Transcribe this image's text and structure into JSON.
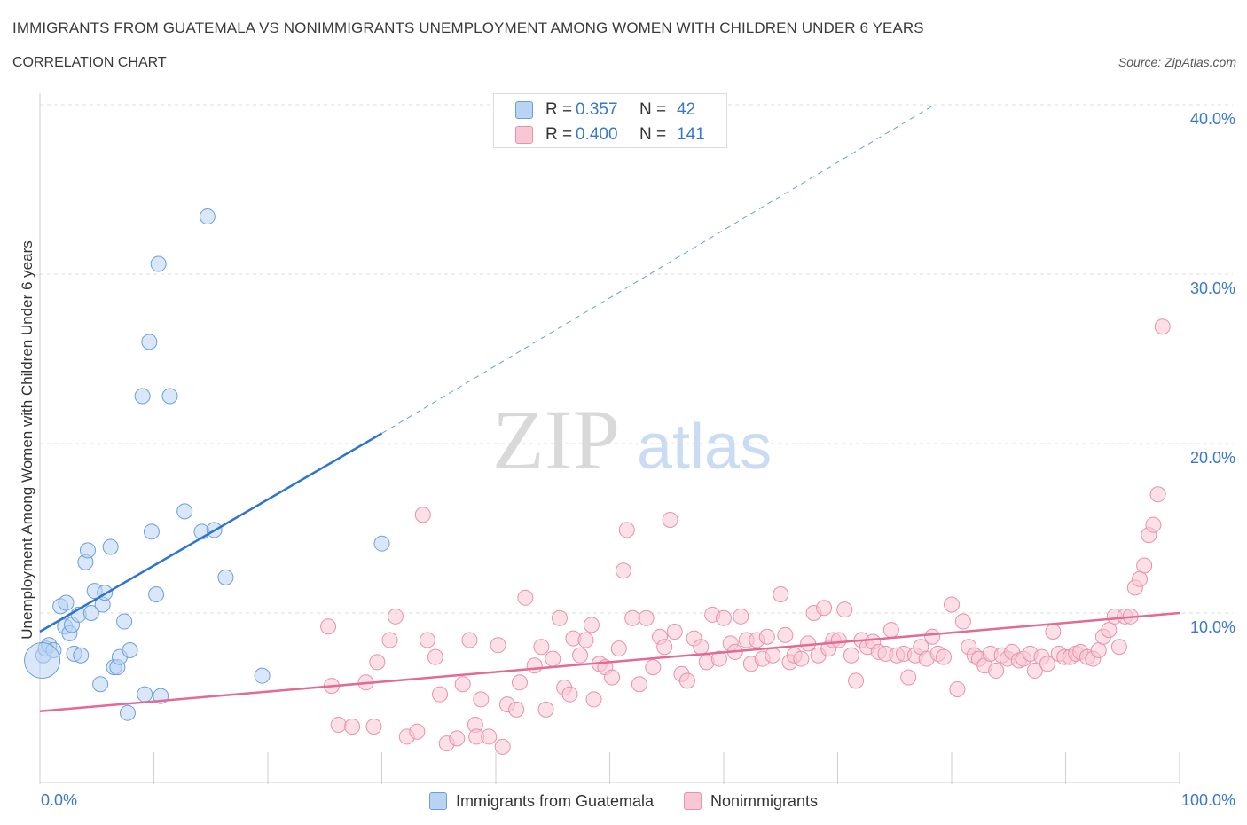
{
  "title": "IMMIGRANTS FROM GUATEMALA VS NONIMMIGRANTS UNEMPLOYMENT AMONG WOMEN WITH CHILDREN UNDER 6 YEARS",
  "subtitle": "CORRELATION CHART",
  "source": "Source: ZipAtlas.com",
  "watermark": {
    "zip": "ZIP",
    "atlas": "atlas"
  },
  "stats": {
    "rows": [
      {
        "r_label": "R =",
        "r_value": "0.357",
        "n_label": "N =",
        "n_value": "42",
        "color": "#a8c8f0"
      },
      {
        "r_label": "R =",
        "r_value": "0.400",
        "n_label": "N =",
        "n_value": "141",
        "color": "#f5b8c8"
      }
    ]
  },
  "colors": {
    "blue_fill": "#b9d3f3",
    "blue_stroke": "#6a9fde",
    "blue_line": "#2c74d0",
    "pink_fill": "#f8c6d4",
    "pink_stroke": "#e891ab",
    "pink_line": "#e26a94",
    "axis_text": "#3a78c9",
    "grid": "#dddddd"
  },
  "chart_data": {
    "type": "scatter",
    "xlabel": "",
    "ylabel": "Unemployment Among Women with Children Under 6 years",
    "xlim": [
      0,
      100
    ],
    "ylim": [
      0,
      40
    ],
    "x_tick_labels": [
      "0.0%",
      "100.0%"
    ],
    "y_tick_labels": [
      "10.0%",
      "20.0%",
      "30.0%",
      "40.0%"
    ],
    "y_ticks": [
      10,
      20,
      30,
      40
    ],
    "grid": true,
    "legend_position": "bottom",
    "series": [
      {
        "name": "Immigrants from Guatemala",
        "trend": {
          "x1": 0,
          "y1": 8.9,
          "x2": 30,
          "y2": 20.6,
          "dash_to_x": 78.5,
          "dash_to_y": 40
        },
        "points": [
          [
            0.3,
            7.5
          ],
          [
            0.5,
            7.9
          ],
          [
            0.8,
            8.1
          ],
          [
            1.2,
            7.8
          ],
          [
            1.8,
            10.4
          ],
          [
            2.2,
            9.2
          ],
          [
            2.3,
            10.6
          ],
          [
            2.6,
            8.8
          ],
          [
            2.8,
            9.3
          ],
          [
            3.0,
            7.6
          ],
          [
            3.4,
            9.9
          ],
          [
            3.6,
            7.5
          ],
          [
            4.0,
            13.0
          ],
          [
            4.2,
            13.7
          ],
          [
            4.5,
            10.0
          ],
          [
            4.8,
            11.3
          ],
          [
            5.3,
            5.8
          ],
          [
            5.5,
            10.5
          ],
          [
            5.7,
            11.2
          ],
          [
            6.2,
            13.9
          ],
          [
            6.5,
            6.8
          ],
          [
            6.8,
            6.8
          ],
          [
            7.0,
            7.4
          ],
          [
            7.4,
            9.5
          ],
          [
            7.7,
            4.1
          ],
          [
            7.9,
            7.8
          ],
          [
            9.0,
            22.8
          ],
          [
            9.2,
            5.2
          ],
          [
            9.6,
            26.0
          ],
          [
            9.8,
            14.8
          ],
          [
            10.2,
            11.1
          ],
          [
            10.4,
            30.6
          ],
          [
            10.6,
            5.1
          ],
          [
            11.4,
            22.8
          ],
          [
            12.7,
            16.0
          ],
          [
            14.2,
            14.8
          ],
          [
            14.7,
            33.4
          ],
          [
            15.3,
            14.9
          ],
          [
            16.3,
            12.1
          ],
          [
            19.5,
            6.3
          ],
          [
            30.0,
            14.1
          ],
          [
            0.2,
            7.2
          ]
        ]
      },
      {
        "name": "Nonimmigrants",
        "trend": {
          "x1": 0,
          "y1": 4.2,
          "x2": 100,
          "y2": 10.0
        },
        "points": [
          [
            25.3,
            9.2
          ],
          [
            25.6,
            5.7
          ],
          [
            26.2,
            3.4
          ],
          [
            27.4,
            3.3
          ],
          [
            28.6,
            5.9
          ],
          [
            29.3,
            3.3
          ],
          [
            29.6,
            7.1
          ],
          [
            30.7,
            8.4
          ],
          [
            31.2,
            9.8
          ],
          [
            32.2,
            2.7
          ],
          [
            33.1,
            3.0
          ],
          [
            33.6,
            15.8
          ],
          [
            34.0,
            8.4
          ],
          [
            34.7,
            7.4
          ],
          [
            35.1,
            5.2
          ],
          [
            35.7,
            2.3
          ],
          [
            36.6,
            2.6
          ],
          [
            37.1,
            5.8
          ],
          [
            37.7,
            8.4
          ],
          [
            38.2,
            3.4
          ],
          [
            38.3,
            2.7
          ],
          [
            38.7,
            4.9
          ],
          [
            39.4,
            2.7
          ],
          [
            40.2,
            8.1
          ],
          [
            40.6,
            2.1
          ],
          [
            41.0,
            4.6
          ],
          [
            41.8,
            4.3
          ],
          [
            42.1,
            5.9
          ],
          [
            42.6,
            10.9
          ],
          [
            43.4,
            6.9
          ],
          [
            44.0,
            8.0
          ],
          [
            44.4,
            4.3
          ],
          [
            45.0,
            7.3
          ],
          [
            45.6,
            9.7
          ],
          [
            46.0,
            5.6
          ],
          [
            46.5,
            5.2
          ],
          [
            46.8,
            8.5
          ],
          [
            47.4,
            7.5
          ],
          [
            47.9,
            8.4
          ],
          [
            48.4,
            9.3
          ],
          [
            48.6,
            4.9
          ],
          [
            49.1,
            7.0
          ],
          [
            49.6,
            6.8
          ],
          [
            50.2,
            6.2
          ],
          [
            50.8,
            7.9
          ],
          [
            51.2,
            12.5
          ],
          [
            51.5,
            14.9
          ],
          [
            52.0,
            9.7
          ],
          [
            52.6,
            5.8
          ],
          [
            53.2,
            9.7
          ],
          [
            53.8,
            6.8
          ],
          [
            54.4,
            8.6
          ],
          [
            54.8,
            8.0
          ],
          [
            55.3,
            15.5
          ],
          [
            55.7,
            8.9
          ],
          [
            56.3,
            6.4
          ],
          [
            56.8,
            6.0
          ],
          [
            57.4,
            8.5
          ],
          [
            58.0,
            8.0
          ],
          [
            58.5,
            7.1
          ],
          [
            59.0,
            9.9
          ],
          [
            59.6,
            7.3
          ],
          [
            60.0,
            9.7
          ],
          [
            60.6,
            8.2
          ],
          [
            61.0,
            7.7
          ],
          [
            61.5,
            9.8
          ],
          [
            62.0,
            8.4
          ],
          [
            62.4,
            7.0
          ],
          [
            62.9,
            8.4
          ],
          [
            63.4,
            7.3
          ],
          [
            63.8,
            8.6
          ],
          [
            64.3,
            7.5
          ],
          [
            65.0,
            11.1
          ],
          [
            65.4,
            8.7
          ],
          [
            65.8,
            7.1
          ],
          [
            66.2,
            7.5
          ],
          [
            66.8,
            7.3
          ],
          [
            67.4,
            8.2
          ],
          [
            67.9,
            10.0
          ],
          [
            68.3,
            7.5
          ],
          [
            68.8,
            10.3
          ],
          [
            69.2,
            7.9
          ],
          [
            69.6,
            8.4
          ],
          [
            70.1,
            8.4
          ],
          [
            70.6,
            10.2
          ],
          [
            71.2,
            7.5
          ],
          [
            71.6,
            6.0
          ],
          [
            72.1,
            8.4
          ],
          [
            72.6,
            8.0
          ],
          [
            73.1,
            8.3
          ],
          [
            73.6,
            7.7
          ],
          [
            74.2,
            7.6
          ],
          [
            74.7,
            9.0
          ],
          [
            75.2,
            7.5
          ],
          [
            75.8,
            7.6
          ],
          [
            76.2,
            6.2
          ],
          [
            76.8,
            7.5
          ],
          [
            77.3,
            8.0
          ],
          [
            77.8,
            7.3
          ],
          [
            78.3,
            8.6
          ],
          [
            78.8,
            7.6
          ],
          [
            79.3,
            7.4
          ],
          [
            80.0,
            10.5
          ],
          [
            80.5,
            5.5
          ],
          [
            81.0,
            9.5
          ],
          [
            81.5,
            8.0
          ],
          [
            82.0,
            7.5
          ],
          [
            82.4,
            7.3
          ],
          [
            82.9,
            6.9
          ],
          [
            83.4,
            7.6
          ],
          [
            83.9,
            6.6
          ],
          [
            84.4,
            7.5
          ],
          [
            84.9,
            7.3
          ],
          [
            85.3,
            7.7
          ],
          [
            85.9,
            7.2
          ],
          [
            86.3,
            7.3
          ],
          [
            86.9,
            7.6
          ],
          [
            87.3,
            6.6
          ],
          [
            87.9,
            7.4
          ],
          [
            88.4,
            7.0
          ],
          [
            88.9,
            8.9
          ],
          [
            89.4,
            7.6
          ],
          [
            89.9,
            7.4
          ],
          [
            90.4,
            7.4
          ],
          [
            90.9,
            7.6
          ],
          [
            91.3,
            7.7
          ],
          [
            91.9,
            7.4
          ],
          [
            92.4,
            7.3
          ],
          [
            92.9,
            7.8
          ],
          [
            93.3,
            8.6
          ],
          [
            93.8,
            9.0
          ],
          [
            94.3,
            9.8
          ],
          [
            94.7,
            8.0
          ],
          [
            95.2,
            9.8
          ],
          [
            95.7,
            9.8
          ],
          [
            96.1,
            11.5
          ],
          [
            96.5,
            12.0
          ],
          [
            96.9,
            12.8
          ],
          [
            97.3,
            14.6
          ],
          [
            97.7,
            15.2
          ],
          [
            98.1,
            17.0
          ],
          [
            98.5,
            26.9
          ]
        ]
      }
    ]
  },
  "legend": {
    "items": [
      {
        "label": "Immigrants from Guatemala",
        "color": "#b9d3f3"
      },
      {
        "label": "Nonimmigrants",
        "color": "#f8c6d4"
      }
    ]
  }
}
